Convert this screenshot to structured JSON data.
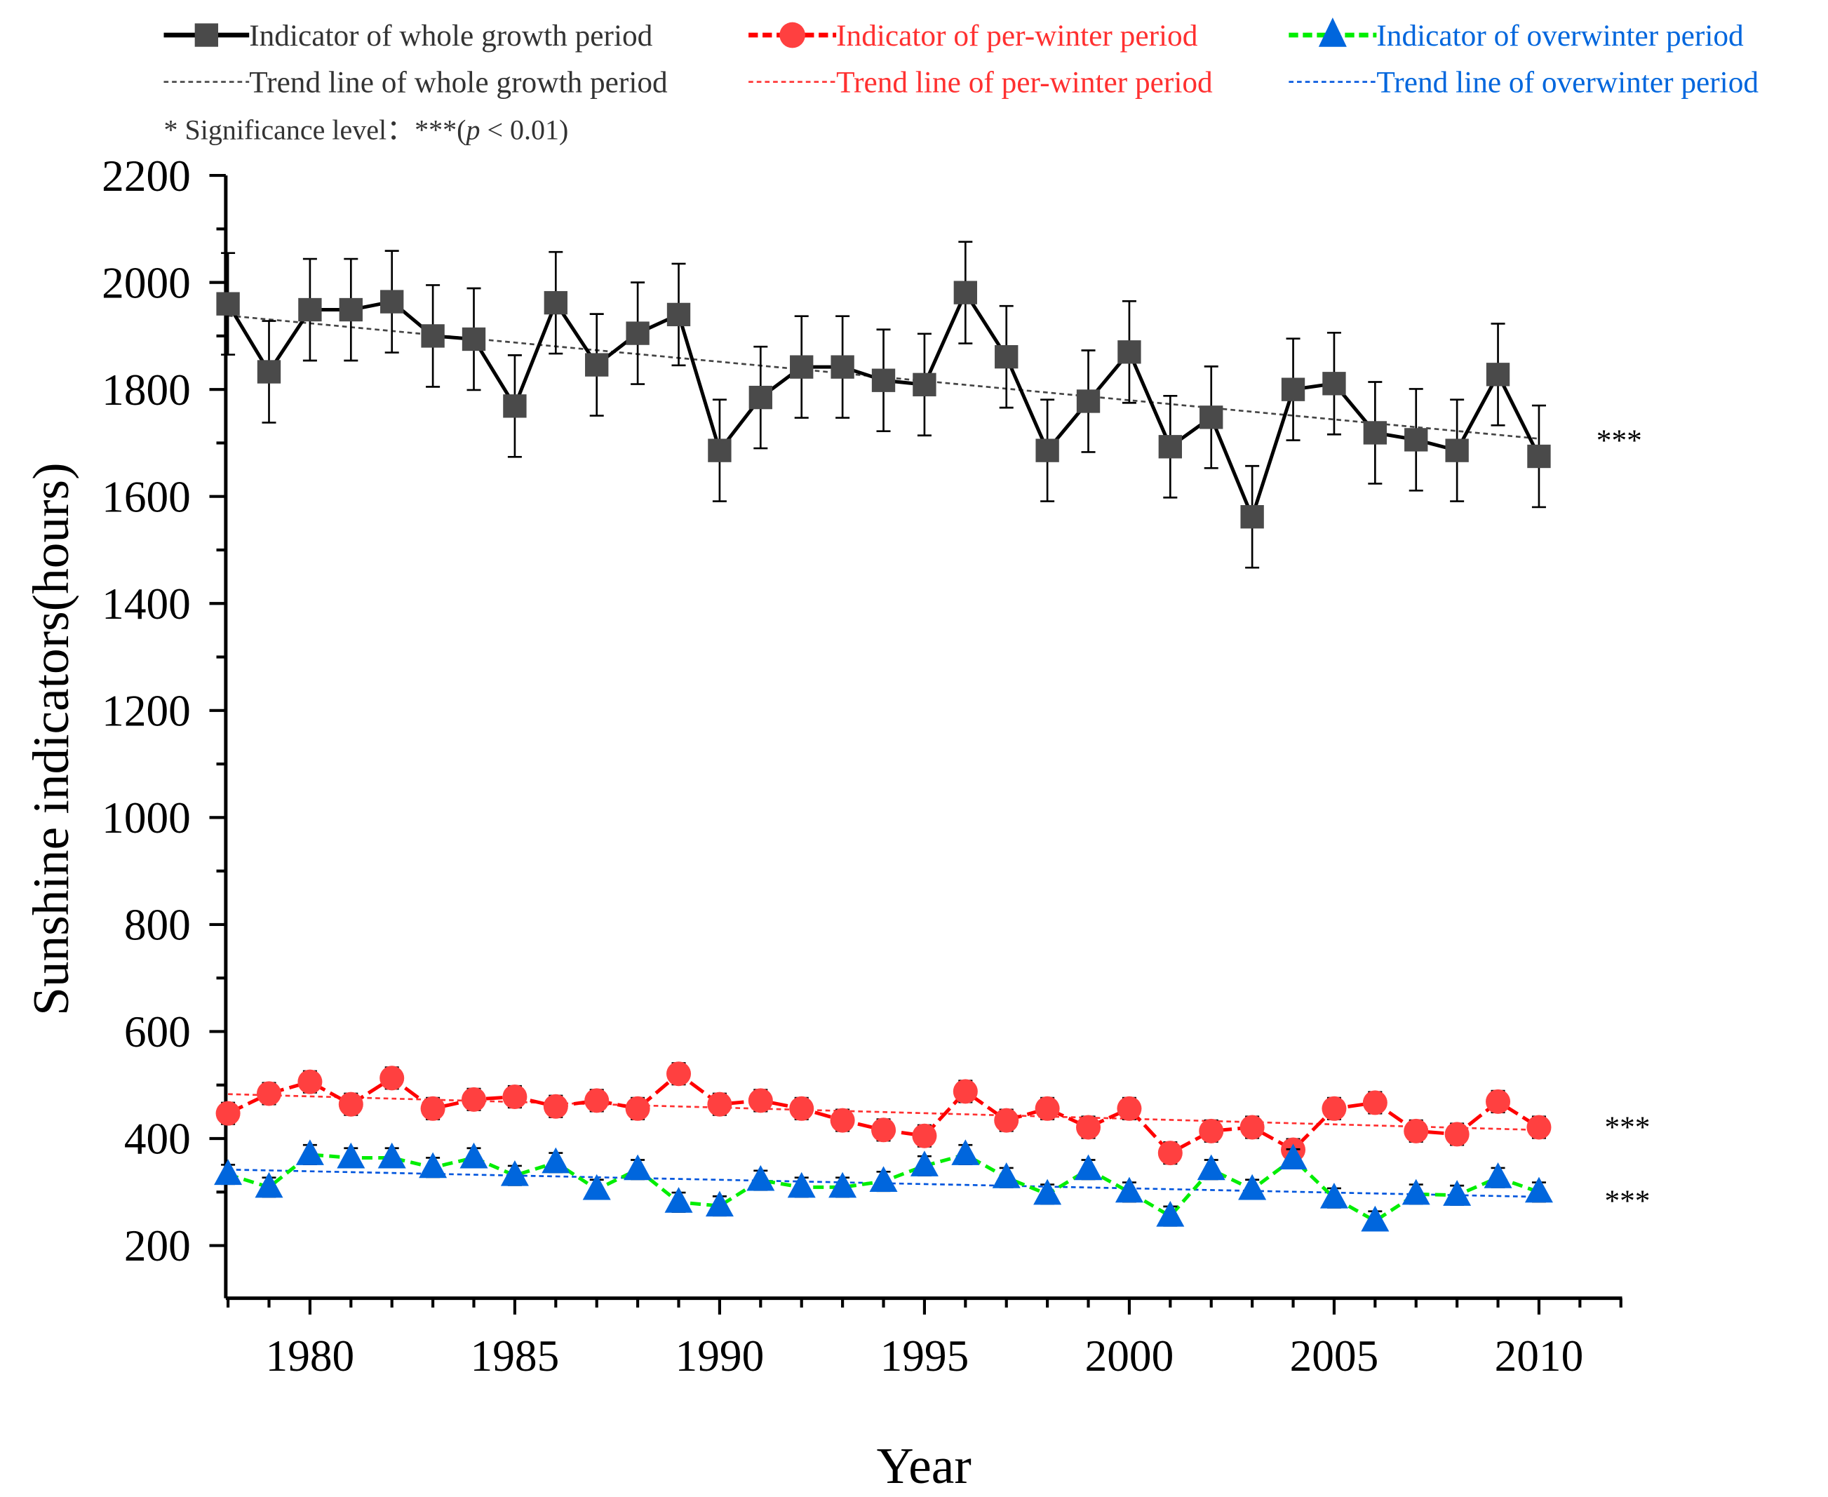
{
  "chart_data": {
    "type": "line",
    "title": "",
    "xlabel": "Year",
    "ylabel": "Sunshine indicators(hours)",
    "xlim": [
      1978,
      2012
    ],
    "ylim": [
      100,
      2200
    ],
    "grid": false,
    "legend_position": "top",
    "x_ticks": [
      "1980",
      "1985",
      "1990",
      "1995",
      "2000",
      "2005",
      "2010"
    ],
    "y_ticks": [
      "200",
      "400",
      "600",
      "800",
      "1000",
      "1200",
      "1400",
      "1600",
      "1800",
      "2000",
      "2200"
    ],
    "x": [
      1978,
      1979,
      1980,
      1981,
      1982,
      1983,
      1984,
      1985,
      1986,
      1987,
      1988,
      1989,
      1990,
      1991,
      1992,
      1993,
      1994,
      1995,
      1996,
      1997,
      1998,
      1999,
      2000,
      2001,
      2002,
      2003,
      2004,
      2005,
      2006,
      2007,
      2008,
      2009,
      2010
    ],
    "series": [
      {
        "name": "Indicator of whole growth period",
        "color": "#000000",
        "marker": "square",
        "marker_color": "#4a4a4a",
        "error": 95,
        "values": [
          1960,
          1833,
          1949,
          1949,
          1964,
          1900,
          1894,
          1769,
          1962,
          1846,
          1905,
          1940,
          1686,
          1785,
          1842,
          1842,
          1817,
          1809,
          1981,
          1861,
          1686,
          1778,
          1870,
          1693,
          1748,
          1562,
          1800,
          1811,
          1719,
          1706,
          1686,
          1828,
          1675
        ]
      },
      {
        "name": "Indicator of per-winter period",
        "color": "#ff0000",
        "marker": "circle",
        "marker_color": "#ff4040",
        "error": 20,
        "values": [
          447,
          484,
          506,
          464,
          513,
          456,
          473,
          478,
          460,
          471,
          456,
          521,
          464,
          471,
          456,
          434,
          416,
          405,
          488,
          434,
          456,
          421,
          456,
          373,
          414,
          421,
          379,
          456,
          467,
          414,
          408,
          469,
          421
        ]
      },
      {
        "name": "Indicator of overwinter period",
        "color": "#00ee00",
        "marker": "triangle",
        "marker_color": "#0066dd",
        "error": 18,
        "values": [
          333,
          309,
          370,
          364,
          364,
          346,
          364,
          331,
          355,
          305,
          342,
          281,
          274,
          322,
          309,
          309,
          320,
          349,
          370,
          327,
          296,
          342,
          300,
          255,
          342,
          305,
          362,
          289,
          246,
          296,
          294,
          327,
          300
        ]
      }
    ],
    "trend_lines": [
      {
        "name": "Trend line of whole growth period",
        "color": "#444444",
        "start": 1938,
        "end": 1708,
        "significance": "***"
      },
      {
        "name": "Trend line of per-winter period",
        "color": "#ff3030",
        "start": 483,
        "end": 416,
        "significance": "***"
      },
      {
        "name": "Trend line of overwinter period",
        "color": "#0055dd",
        "start": 342,
        "end": 291,
        "significance": "***"
      }
    ],
    "annotation": "* Significance level：***(",
    "annotation_p": "p",
    "annotation_tail": " < 0.01)"
  }
}
